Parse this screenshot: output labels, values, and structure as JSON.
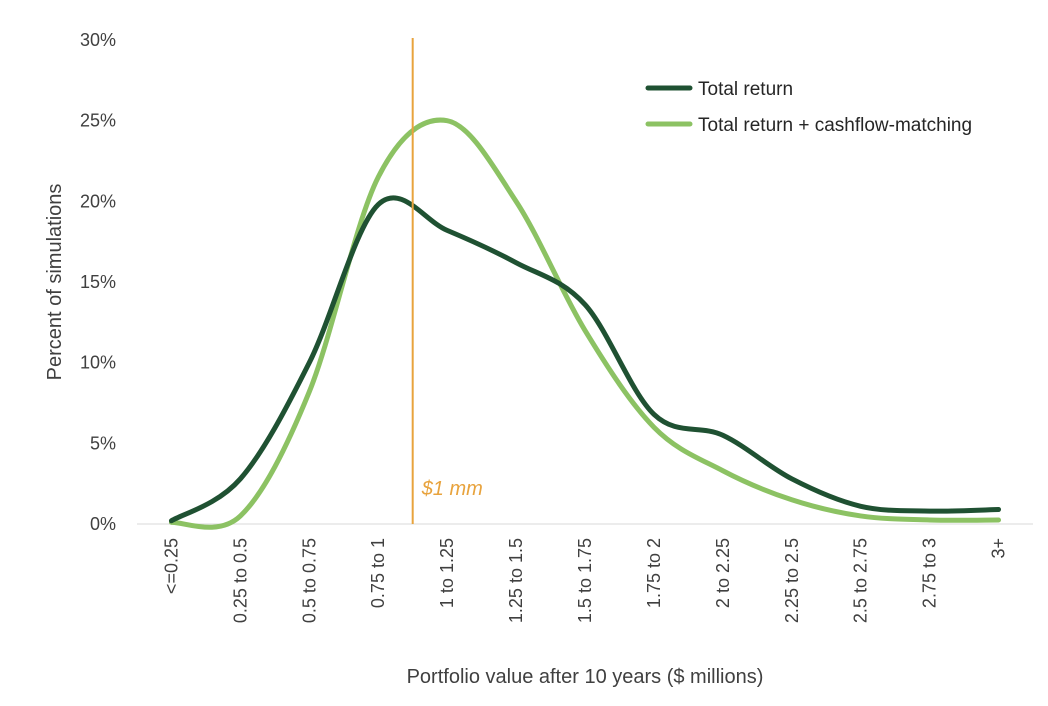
{
  "chart_data": {
    "type": "line",
    "xlabel": "Portfolio value after 10 years ($ millions)",
    "ylabel": "Percent of simulations",
    "ylim": [
      0,
      30
    ],
    "yticks": [
      "0%",
      "5%",
      "10%",
      "15%",
      "20%",
      "25%",
      "30%"
    ],
    "categories": [
      "<=0.25",
      "0.25 to 0.5",
      "0.5 to 0.75",
      "0.75 to 1",
      "1 to 1.25",
      "1.25 to 1.5",
      "1.5 to 1.75",
      "1.75 to 2",
      "2 to 2.25",
      "2.25 to 2.5",
      "2.5 to 2.75",
      "2.75 to 3",
      "3+"
    ],
    "grid": false,
    "legend_position": "top-right",
    "series": [
      {
        "name": "Total return",
        "color": "#1F5132",
        "values": [
          0.2,
          2.8,
          10.0,
          19.8,
          18.2,
          16.2,
          13.6,
          6.8,
          5.5,
          2.8,
          1.1,
          0.8,
          0.9
        ]
      },
      {
        "name": "Total return + cashflow-matching",
        "color": "#8CC263",
        "values": [
          0.1,
          0.5,
          8.2,
          21.5,
          25.0,
          20.0,
          12.0,
          6.0,
          3.3,
          1.5,
          0.5,
          0.25,
          0.25
        ]
      }
    ],
    "reference_line": {
      "x": 1.0,
      "label": "$1 mm",
      "color": "#E8A33D"
    }
  }
}
